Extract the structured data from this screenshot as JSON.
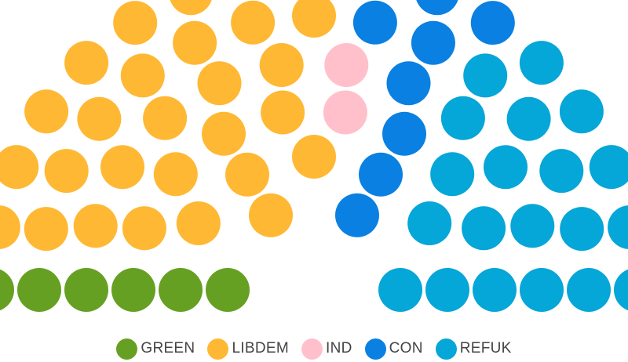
{
  "chart_data": {
    "type": "parliament",
    "total_seats": 65,
    "series": [
      {
        "name": "GREEN",
        "seats": 6,
        "color": "#66a023"
      },
      {
        "name": "LIBDEM",
        "seats": 28,
        "color": "#ffb833"
      },
      {
        "name": "IND",
        "seats": 2,
        "color": "#ffc0cb"
      },
      {
        "name": "CON",
        "seats": 9,
        "color": "#0a80e2"
      },
      {
        "name": "REFUK",
        "seats": 20,
        "color": "#05a6d8"
      }
    ],
    "legend_position": "bottom-center"
  }
}
